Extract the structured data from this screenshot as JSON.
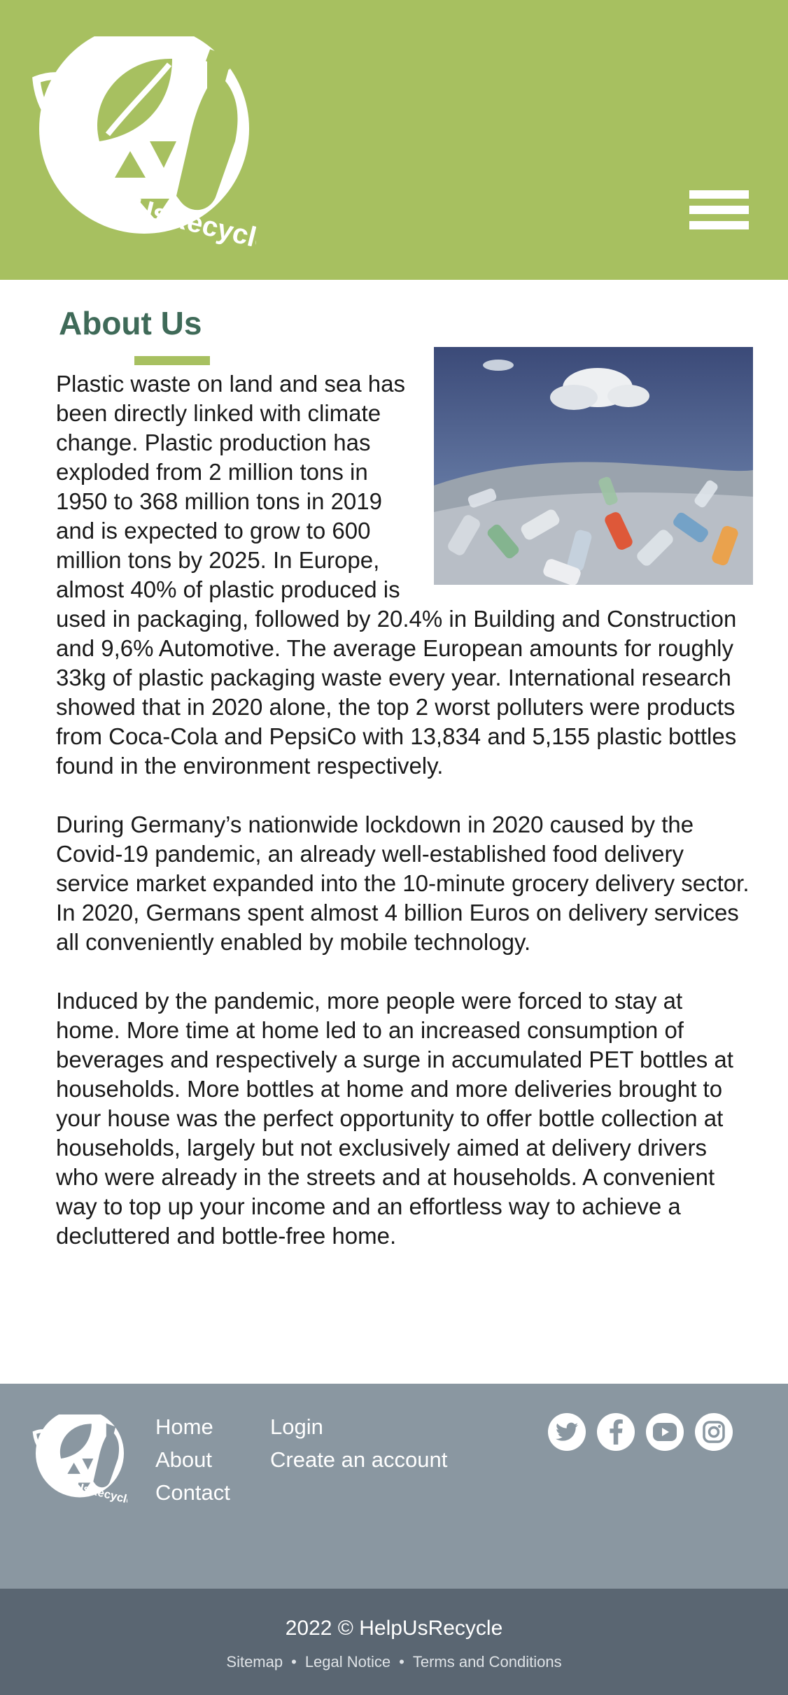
{
  "brand": {
    "name": "HelpUsRecycle"
  },
  "colors": {
    "header": "#a7c060",
    "heading": "#3f6a58",
    "footer": "#8a97a1",
    "bottom_bar": "#5a6672"
  },
  "header": {
    "menu_icon": "hamburger-menu-icon"
  },
  "about": {
    "title": "About Us",
    "image_icon": "plastic-bottle-pile-photo",
    "paragraphs": [
      "Plastic waste on land and sea has been directly linked with climate change. Plastic production has exploded from 2 million tons in 1950 to 368 million tons in 2019 and is expected to grow to 600 million tons by 2025. In Europe, almost 40% of plastic produced is used in packaging, followed by 20.4% in Building and Construction and 9,6% Automotive. The average European amounts for roughly 33kg of plastic packaging waste every year. International research showed that in 2020 alone, the top 2 worst polluters were products from Coca-Cola and PepsiCo with 13,834 and 5,155 plastic bottles found in the environment respectively.",
      "During Germany’s nationwide lockdown in 2020 caused by the Covid-19 pandemic, an already well-established food delivery service market expanded into the 10-minute grocery delivery sector. In 2020, Germans spent almost 4 billion Euros on delivery services all conveniently enabled by mobile technology.",
      "Induced by the pandemic, more people were forced to stay at home. More time at home led to an increased consumption of beverages and respectively a surge in accumulated PET bottles at households. More bottles at home and more deliveries brought to your house was the perfect opportunity to offer bottle collection at households, largely but not exclusively aimed at delivery drivers who were already in the streets and at households. A convenient way to top up your income and an effortless way to achieve a decluttered and bottle-free home."
    ]
  },
  "footer": {
    "links_col1": [
      "Home",
      "About",
      "Contact"
    ],
    "links_col2": [
      "Login",
      "Create an account"
    ],
    "socials": [
      "twitter-icon",
      "facebook-icon",
      "youtube-icon",
      "instagram-icon"
    ],
    "copyright": "2022 © HelpUsRecycle",
    "legal": [
      "Sitemap",
      "Legal Notice",
      "Terms and Conditions"
    ]
  }
}
